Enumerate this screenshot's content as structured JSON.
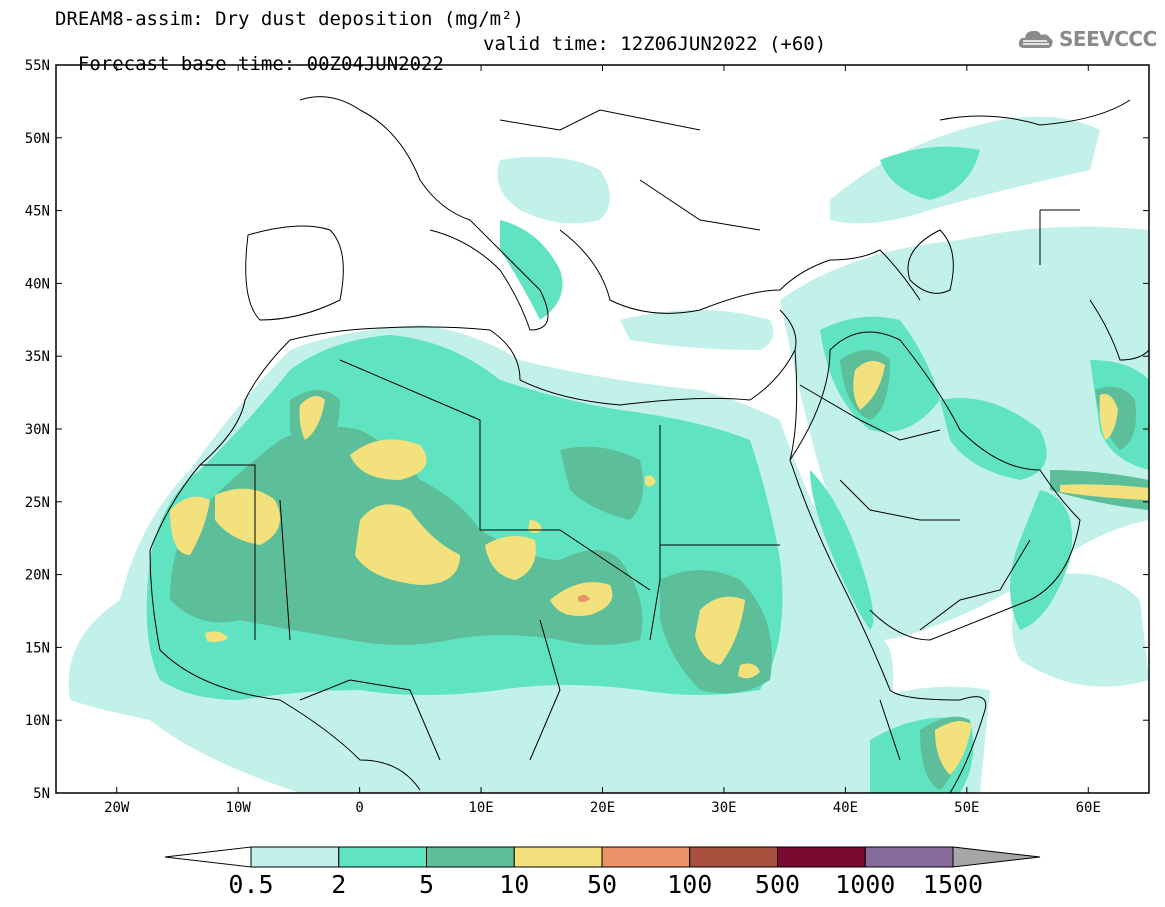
{
  "header": {
    "title": "DREAM8-assim: Dry dust deposition (mg/m²)",
    "base_time": "Forecast base time: 00Z04JUN2022",
    "valid_time": "valid time: 12Z06JUN2022 (+60)"
  },
  "logo": {
    "text": "SEEVCCC",
    "icon": "cloud-logo-icon"
  },
  "axes": {
    "lat_ticks": [
      "55N",
      "50N",
      "45N",
      "40N",
      "35N",
      "30N",
      "25N",
      "20N",
      "15N",
      "10N",
      "5N"
    ],
    "lon_ticks": [
      "20W",
      "10W",
      "0",
      "10E",
      "20E",
      "30E",
      "40E",
      "50E",
      "60E"
    ],
    "lon_range": [
      -25,
      65
    ],
    "lat_range": [
      5,
      55
    ]
  },
  "colorbar": {
    "labels": [
      "0.5",
      "2",
      "5",
      "10",
      "50",
      "100",
      "500",
      "1000",
      "1500"
    ],
    "colors": [
      "#c2f1ea",
      "#5fe3c1",
      "#5cbf9a",
      "#f3e17e",
      "#eb9268",
      "#a9503f",
      "#7a0a2f",
      "#876b9d"
    ]
  },
  "map_colors": {
    "ocean": "#ffffff",
    "border": "#000000"
  }
}
